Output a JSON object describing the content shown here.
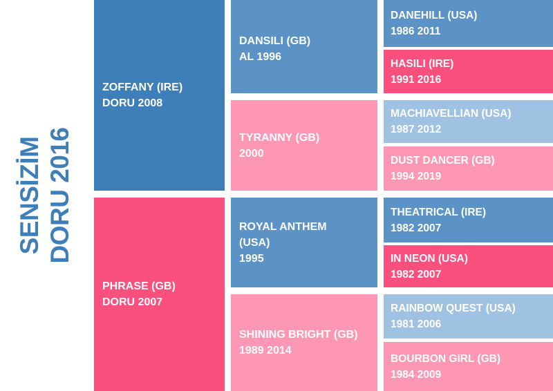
{
  "title": {
    "line1": "SENSİZİM",
    "line2": "DORU 2016"
  },
  "colors": {
    "blue_dark": "#3f7fb9",
    "blue_mid": "#5b93c6",
    "blue_light": "#9fc1e2",
    "pink_dark": "#fb4f7d",
    "pink_light": "#fd97b5"
  },
  "pedigree": {
    "sire": {
      "name": "ZOFFANY (IRE)",
      "info": "DORU 2008",
      "sire": {
        "name": "DANSILI (GB)",
        "info": "AL 1996",
        "sire": {
          "name": "DANEHILL (USA)",
          "info": "1986 2011"
        },
        "dam": {
          "name": "HASILI (IRE)",
          "info": "1991 2016"
        }
      },
      "dam": {
        "name": "TYRANNY (GB)",
        "info": "2000",
        "sire": {
          "name": "MACHIAVELLIAN (USA)",
          "info": "1987 2012"
        },
        "dam": {
          "name": "DUST DANCER (GB)",
          "info": "1994 2019"
        }
      }
    },
    "dam": {
      "name": "PHRASE (GB)",
      "info": "DORU 2007",
      "sire": {
        "name": "ROYAL ANTHEM",
        "name2": "(USA)",
        "info": "1995",
        "sire": {
          "name": "THEATRICAL (IRE)",
          "info": "1982 2007"
        },
        "dam": {
          "name": "IN NEON (USA)",
          "info": "1982 2007"
        }
      },
      "dam": {
        "name": "SHINING BRIGHT (GB)",
        "info": "1989 2014",
        "sire": {
          "name": "RAINBOW QUEST (USA)",
          "info": "1981 2006"
        },
        "dam": {
          "name": "BOURBON GIRL (GB)",
          "info": "1984 2009"
        }
      }
    }
  }
}
